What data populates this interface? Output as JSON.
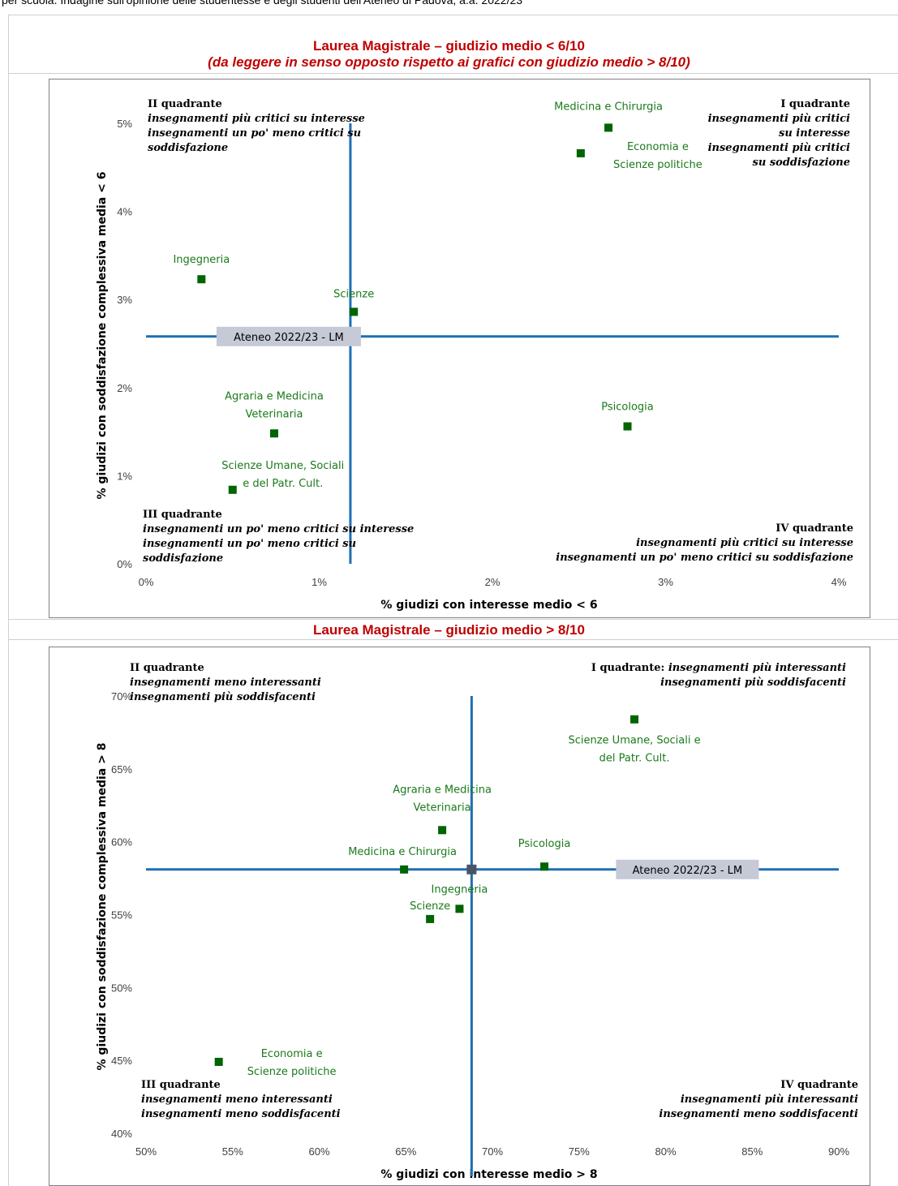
{
  "caption": "per scuola. Indagine sull'opinione delle studentesse e degli studenti dell'Ateneo di Padova, a.a. 2022/23",
  "colors": {
    "title": "#c00000",
    "point": "#006400",
    "point_label": "#1a7a1a",
    "ref_line": "#1f6fb4",
    "ref_marker": "#4a5468",
    "ref_box": "#c5cad6"
  },
  "chart_data": [
    {
      "type": "scatter",
      "title": "Laurea Magistrale – giudizio medio < 6/10",
      "subtitle": "(da leggere in senso opposto rispetto ai grafici con giudizio medio > 8/10)",
      "xlabel": "% giudizi con interesse medio < 6",
      "ylabel": "% giudizi con soddisfazione complessiva media < 6",
      "xlim": [
        0,
        4
      ],
      "ylim": [
        0,
        5
      ],
      "x_ticks": [
        "0%",
        "1%",
        "2%",
        "3%",
        "4%"
      ],
      "y_ticks": [
        "0%",
        "1%",
        "2%",
        "3%",
        "4%",
        "5%"
      ],
      "reference": {
        "label": "Ateneo 2022/23 - LM",
        "x": 1.18,
        "y": 2.58
      },
      "points": [
        {
          "label": "Medicina e Chirurgia",
          "x": 2.67,
          "y": 4.95
        },
        {
          "label": "Economia e Scienze politiche",
          "x": 2.51,
          "y": 4.66
        },
        {
          "label": "Ingegneria",
          "x": 0.32,
          "y": 3.23
        },
        {
          "label": "Scienze",
          "x": 1.2,
          "y": 2.86
        },
        {
          "label": "Agraria e Medicina Veterinaria",
          "x": 0.74,
          "y": 1.48
        },
        {
          "label": "Psicologia",
          "x": 2.78,
          "y": 1.56
        },
        {
          "label": "Scienze Umane, Sociali e del Patr. Cult.",
          "x": 0.5,
          "y": 0.84
        }
      ],
      "quadrants": {
        "q1": {
          "title": "I quadrante",
          "lines": [
            "insegnamenti più critici",
            "su interesse",
            "insegnamenti più critici",
            "su soddisfazione"
          ]
        },
        "q2": {
          "title": "II quadrante",
          "lines": [
            "insegnamenti più critici su interesse",
            "insegnamenti un po' meno critici su",
            "soddisfazione"
          ]
        },
        "q3": {
          "title": "III quadrante",
          "lines": [
            "insegnamenti un po' meno critici su interesse",
            "insegnamenti un po' meno critici su",
            "soddisfazione"
          ]
        },
        "q4": {
          "title": "IV quadrante",
          "lines": [
            "insegnamenti più critici su interesse",
            "insegnamenti un po' meno critici su soddisfazione"
          ]
        }
      }
    },
    {
      "type": "scatter",
      "title": "Laurea Magistrale – giudizio medio > 8/10",
      "xlabel": "% giudizi con interesse medio > 8",
      "ylabel": "% giudizi con soddisfazione complessiva media > 8",
      "xlim": [
        50,
        90
      ],
      "ylim": [
        40,
        70
      ],
      "x_ticks": [
        "50%",
        "55%",
        "60%",
        "65%",
        "70%",
        "75%",
        "80%",
        "85%",
        "90%"
      ],
      "y_ticks": [
        "40%",
        "45%",
        "50%",
        "55%",
        "60%",
        "65%",
        "70%"
      ],
      "reference": {
        "label": "Ateneo 2022/23 - LM",
        "x": 68.8,
        "y": 58.1
      },
      "points": [
        {
          "label": "Scienze Umane, Sociali e del Patr. Cult.",
          "x": 78.2,
          "y": 68.4
        },
        {
          "label": "Agraria e Medicina Veterinaria",
          "x": 67.1,
          "y": 60.8
        },
        {
          "label": "Medicina e Chirurgia",
          "x": 64.9,
          "y": 58.1
        },
        {
          "label": "Psicologia",
          "x": 73.0,
          "y": 58.3
        },
        {
          "label": "Ingegneria",
          "x": 68.1,
          "y": 55.4
        },
        {
          "label": "Scienze",
          "x": 66.4,
          "y": 54.7
        },
        {
          "label": "Economia e Scienze politiche",
          "x": 54.2,
          "y": 44.9
        }
      ],
      "quadrants": {
        "q1": {
          "title": "I quadrante:",
          "lines": [
            "insegnamenti più interessanti",
            "insegnamenti più soddisfacenti"
          ]
        },
        "q2": {
          "title": "II quadrante",
          "lines": [
            "insegnamenti meno interessanti",
            "insegnamenti più soddisfacenti"
          ]
        },
        "q3": {
          "title": "III quadrante",
          "lines": [
            "insegnamenti meno interessanti",
            "insegnamenti meno soddisfacenti"
          ]
        },
        "q4": {
          "title": "IV quadrante",
          "lines": [
            "insegnamenti più interessanti",
            "insegnamenti meno soddisfacenti"
          ]
        }
      }
    }
  ]
}
